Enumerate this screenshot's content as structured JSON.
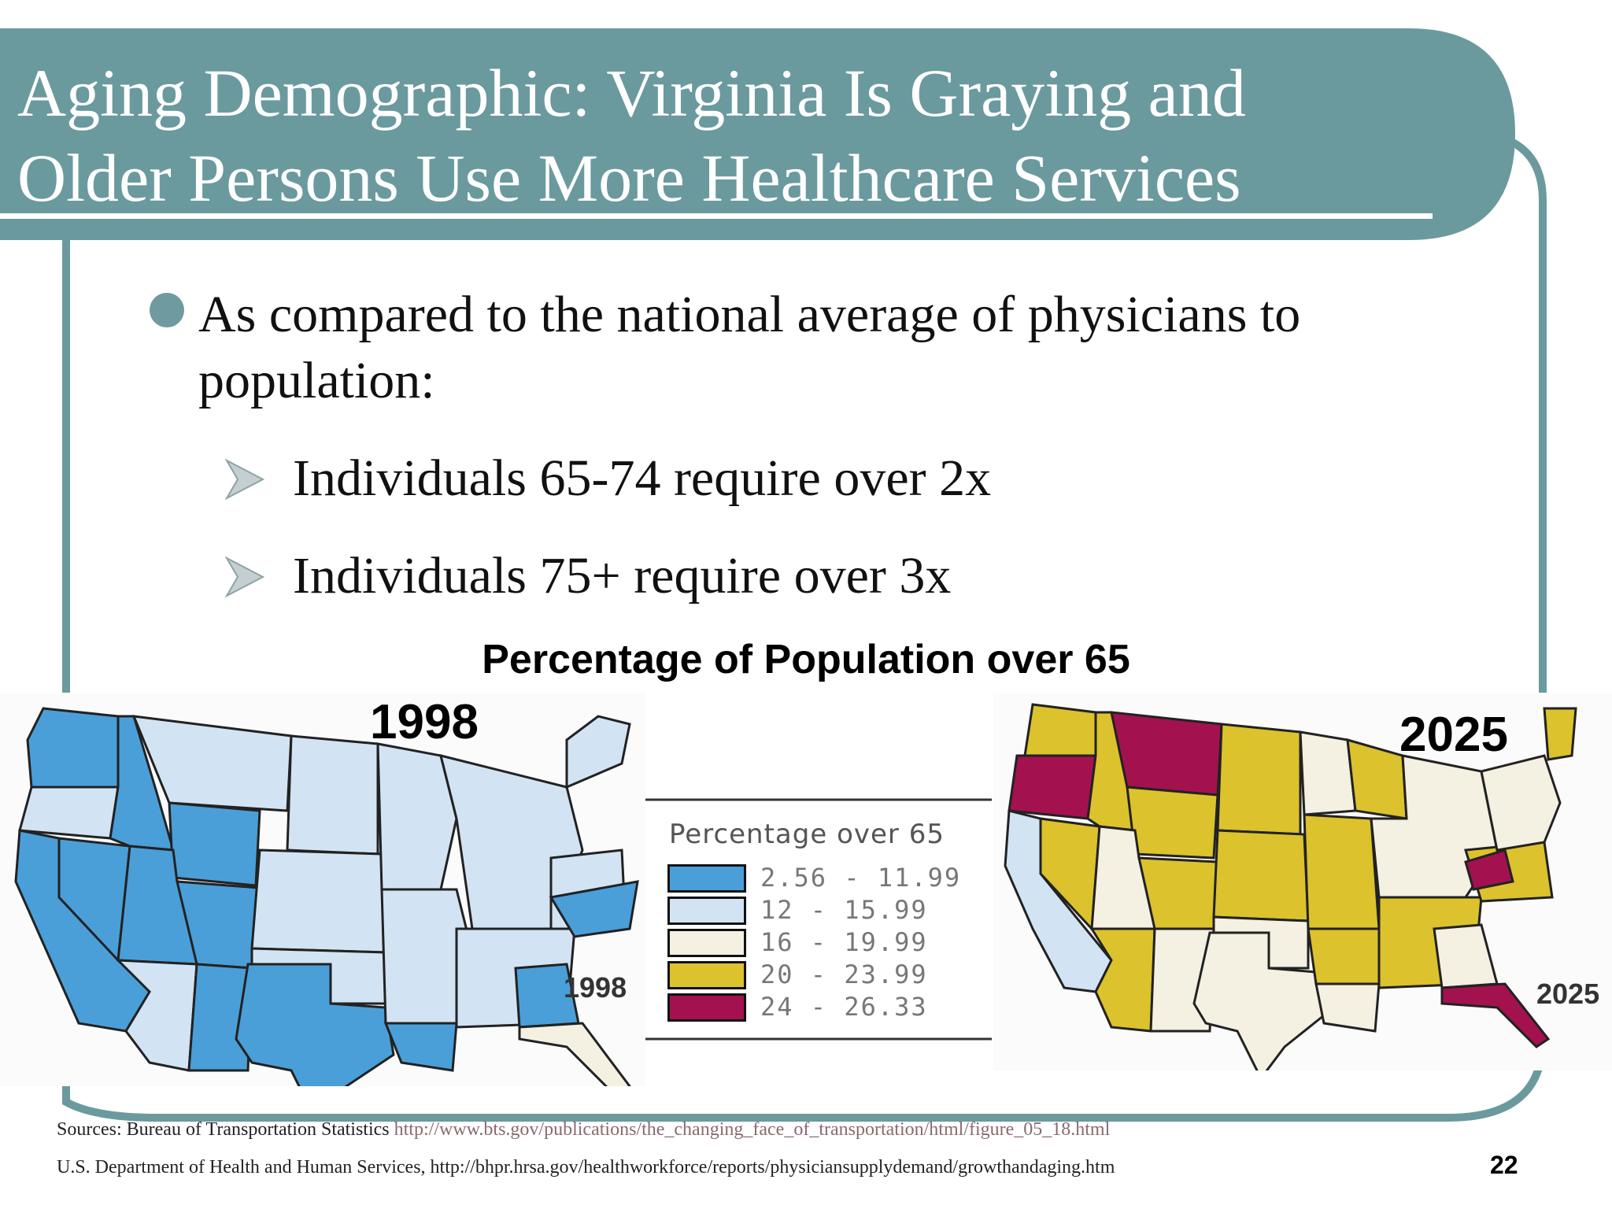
{
  "slide": {
    "title_line1": "Aging Demographic: Virginia Is Graying and",
    "title_line2": "Older Persons Use More Healthcare Services",
    "bullet": "As compared to the national average of physicians to population:",
    "sub_bullets": [
      "Individuals 65-74 require over 2x",
      "Individuals 75+ require over 3x"
    ],
    "page_number": "22"
  },
  "figure": {
    "title": "Percentage of Population over 65",
    "year_left": "1998",
    "year_right": "2025",
    "map_year_left": "1998",
    "map_year_right": "2025",
    "legend_title": "Percentage over 65",
    "legend": [
      {
        "label": "2.56 - 11.99",
        "color": "#4a9fd8"
      },
      {
        "label": "12 - 15.99",
        "color": "#d2e4f3"
      },
      {
        "label": "16 - 19.99",
        "color": "#f4f0e2"
      },
      {
        "label": "20 - 23.99",
        "color": "#dcc22c"
      },
      {
        "label": "24 - 26.33",
        "color": "#a3124f"
      }
    ]
  },
  "sources": {
    "line1_prefix": "Sources: Bureau of Transportation Statistics ",
    "line1_url": "http://www.bts.gov/publications/the_changing_face_of_transportation/html/figure_05_18.html",
    "line2": "U.S. Department of Health and Human Services, http://bhpr.hrsa.gov/healthworkforce/reports/physiciansupplydemand/growthandaging.htm"
  },
  "colors": {
    "frame_teal": "#6a9a9e",
    "bullet_dot": "#6f9aa0",
    "arrow_gray": "#c5cfd2"
  }
}
